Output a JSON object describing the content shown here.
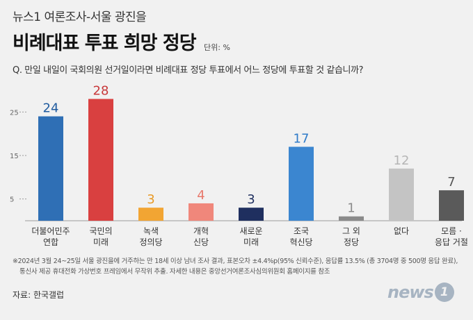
{
  "header": {
    "supertitle": "뉴스1 여론조사-서울 광진을",
    "title": "비례대표 투표 희망 정당",
    "unit": "단위: %",
    "question": "Q. 만일 내일이 국회의원 선거일이라면 비례대표 정당 투표에서 어느 정당에 투표할 것 같습니까?"
  },
  "chart_data": {
    "type": "bar",
    "title": "비례대표 투표 희망 정당",
    "ylim": [
      0,
      30
    ],
    "yticks": [
      5,
      15,
      25
    ],
    "grid": false,
    "categories": [
      [
        "더불어민주",
        "연합"
      ],
      [
        "국민의",
        "미래"
      ],
      [
        "녹색",
        "정의당"
      ],
      [
        "개혁",
        "신당"
      ],
      [
        "새로운",
        "미래"
      ],
      [
        "조국",
        "혁신당"
      ],
      [
        "그 외",
        "정당"
      ],
      [
        "없다"
      ],
      [
        "모름 ·",
        "응답 거절"
      ]
    ],
    "values": [
      24,
      28,
      3,
      4,
      3,
      17,
      1,
      12,
      7
    ],
    "colors": [
      "#2f6fb5",
      "#d94040",
      "#f2a533",
      "#f0877b",
      "#1f2f5f",
      "#3b86d0",
      "#8a8a8a",
      "#c4c4c4",
      "#5a5a5a"
    ],
    "label_colors": [
      "#1e5a9e",
      "#c8383a",
      "#e89a26",
      "#e8786b",
      "#1f2f5f",
      "#2f7bc8",
      "#8a8a8a",
      "#b5b5b5",
      "#555555"
    ]
  },
  "footer": {
    "note_line1": "※2024년 3월 24~25일 서울 광진을에 거주하는 만 18세 이상 남녀 조사 결과, 표본오차 ±4.4%p(95% 신뢰수준), 응답률 13.5% (총 3704명 중 500명 응답 완료),",
    "note_line2": "통신사 제공 휴대전화 가상번호 프레임에서 무작위 추출. 자세한 내용은 중앙선거여론조사심의위원회 홈페이지를 참조",
    "source": "자료: 한국갤럽",
    "logo_text": "news",
    "logo_mark": "1"
  }
}
